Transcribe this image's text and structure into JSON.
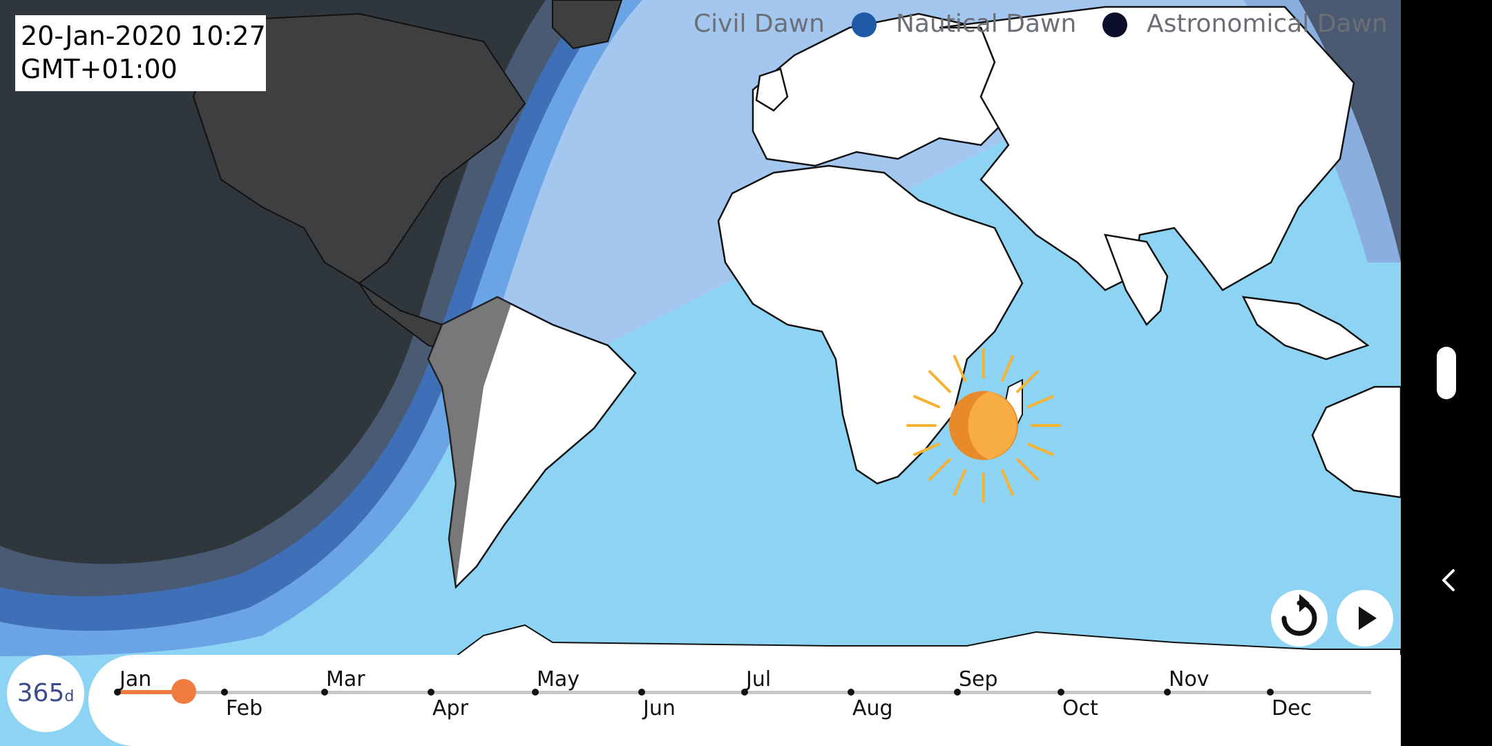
{
  "datetime": {
    "date_time": "20-Jan-2020 10:27",
    "timezone": "GMT+01:00"
  },
  "legend": [
    {
      "label": "Civil Dawn",
      "color": "#a6c5ee"
    },
    {
      "label": "Nautical Dawn",
      "color": "#1f5aa6"
    },
    {
      "label": "Astronomical Dawn",
      "color": "#0b0f2a"
    }
  ],
  "colors": {
    "ocean": "#8dd3f3",
    "night": "#2f363c",
    "accent": "#f07b3f",
    "sun": "#f6a83b"
  },
  "timeline": {
    "days_value": "365",
    "days_unit": "d",
    "months_up": [
      "Jan",
      "Mar",
      "May",
      "Jul",
      "Sep",
      "Nov"
    ],
    "months_down": [
      "Feb",
      "Apr",
      "Jun",
      "Aug",
      "Oct",
      "Dec"
    ],
    "progress": 0.053
  },
  "controls": {
    "replay_icon": "replay-icon",
    "play_icon": "play-icon"
  },
  "system_nav": {
    "home_icon": "home-pill-icon",
    "back_icon": "back-chevron-icon"
  }
}
